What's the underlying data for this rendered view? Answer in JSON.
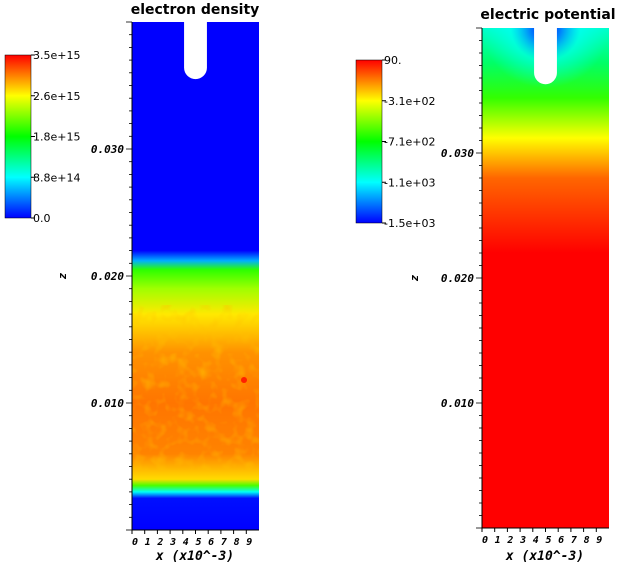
{
  "chart_data": [
    {
      "type": "heatmap",
      "title": "electron density",
      "colorbar": {
        "tick_labels": [
          "3.5e+15",
          "2.6e+15",
          "1.8e+15",
          "8.8e+14",
          "0.0"
        ],
        "range": [
          0.0,
          3500000000000000.0
        ],
        "colors": [
          "#0000ff",
          "#00ffff",
          "#00ff00",
          "#ffff00",
          "#ff0000"
        ]
      },
      "xlabel": "x (x10^-3)",
      "ylabel": "z",
      "x_ticks": [
        "0",
        "1",
        "2",
        "3",
        "4",
        "5",
        "6",
        "7",
        "8",
        "9"
      ],
      "z_ticks": [
        "0.030",
        "0.020",
        "0.010"
      ],
      "x_range": [
        0,
        10
      ],
      "z_range": [
        0,
        0.04
      ],
      "profile": {
        "z": [
          0.0,
          0.0025,
          0.003,
          0.0035,
          0.004,
          0.006,
          0.01,
          0.014,
          0.017,
          0.019,
          0.0205,
          0.0212,
          0.022,
          0.04
        ],
        "density": [
          0.0,
          50000000000000.0,
          900000000000000.0,
          2000000000000000.0,
          2750000000000000.0,
          3050000000000000.0,
          3100000000000000.0,
          3000000000000000.0,
          2700000000000000.0,
          2300000000000000.0,
          1900000000000000.0,
          600000000000000.0,
          0.0,
          0.0
        ]
      },
      "electrode": {
        "x_center": 5.0,
        "half_width": 0.9,
        "tip_z": 0.0355
      }
    },
    {
      "type": "heatmap",
      "title": "electric potential",
      "colorbar": {
        "tick_labels": [
          "90.",
          "-3.1e+02",
          "-7.1e+02",
          "-1.1e+03",
          "-1.5e+03"
        ],
        "range": [
          -1500,
          90
        ],
        "colors": [
          "#0000ff",
          "#00ffff",
          "#00ff00",
          "#ffff00",
          "#ff0000"
        ]
      },
      "xlabel": "x (x10^-3)",
      "ylabel": "z",
      "x_ticks": [
        "0",
        "1",
        "2",
        "3",
        "4",
        "5",
        "6",
        "7",
        "8",
        "9"
      ],
      "z_ticks": [
        "0.030",
        "0.020",
        "0.010"
      ],
      "x_range": [
        0,
        10
      ],
      "z_range": [
        0,
        0.04
      ],
      "electrode": {
        "x_center": 5.0,
        "half_width": 0.9,
        "tip_z": 0.0355
      }
    }
  ]
}
